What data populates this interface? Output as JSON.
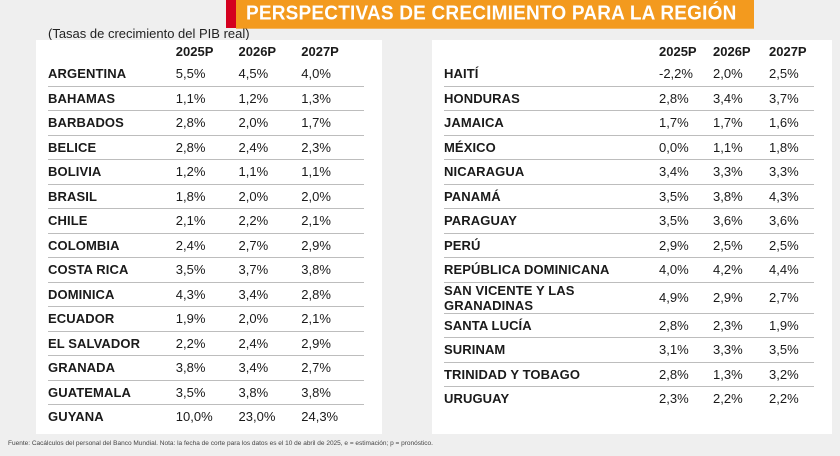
{
  "title": "PERSPECTIVAS DE CRECIMIENTO PARA LA REGIÓN",
  "subtitle": "(Tasas de crecimiento del PIB real)",
  "columns": [
    "2025P",
    "2026P",
    "2027P"
  ],
  "left_rows": [
    {
      "country": "ARGENTINA",
      "v": [
        "5,5%",
        "4,5%",
        "4,0%"
      ]
    },
    {
      "country": "BAHAMAS",
      "v": [
        "1,1%",
        "1,2%",
        "1,3%"
      ]
    },
    {
      "country": "BARBADOS",
      "v": [
        "2,8%",
        "2,0%",
        "1,7%"
      ]
    },
    {
      "country": "BELICE",
      "v": [
        "2,8%",
        "2,4%",
        "2,3%"
      ]
    },
    {
      "country": "BOLIVIA",
      "v": [
        "1,2%",
        "1,1%",
        "1,1%"
      ]
    },
    {
      "country": "BRASIL",
      "v": [
        "1,8%",
        "2,0%",
        "2,0%"
      ]
    },
    {
      "country": "CHILE",
      "v": [
        "2,1%",
        "2,2%",
        "2,1%"
      ]
    },
    {
      "country": "COLOMBIA",
      "v": [
        "2,4%",
        "2,7%",
        "2,9%"
      ]
    },
    {
      "country": "COSTA RICA",
      "v": [
        "3,5%",
        "3,7%",
        "3,8%"
      ]
    },
    {
      "country": "DOMINICA",
      "v": [
        "4,3%",
        "3,4%",
        "2,8%"
      ]
    },
    {
      "country": "ECUADOR",
      "v": [
        "1,9%",
        "2,0%",
        "2,1%"
      ]
    },
    {
      "country": "EL SALVADOR",
      "v": [
        "2,2%",
        "2,4%",
        "2,9%"
      ]
    },
    {
      "country": "GRANADA",
      "v": [
        "3,8%",
        "3,4%",
        "2,7%"
      ]
    },
    {
      "country": "GUATEMALA",
      "v": [
        "3,5%",
        "3,8%",
        "3,8%"
      ]
    },
    {
      "country": "GUYANA",
      "v": [
        "10,0%",
        "23,0%",
        "24,3%"
      ]
    }
  ],
  "right_rows": [
    {
      "country": "HAITÍ",
      "v": [
        "-2,2%",
        "2,0%",
        "2,5%"
      ]
    },
    {
      "country": "HONDURAS",
      "v": [
        "2,8%",
        "3,4%",
        "3,7%"
      ]
    },
    {
      "country": "JAMAICA",
      "v": [
        "1,7%",
        "1,7%",
        "1,6%"
      ]
    },
    {
      "country": "MÉXICO",
      "v": [
        "0,0%",
        "1,1%",
        "1,8%"
      ]
    },
    {
      "country": "NICARAGUA",
      "v": [
        "3,4%",
        "3,3%",
        "3,3%"
      ]
    },
    {
      "country": "PANAMÁ",
      "v": [
        "3,5%",
        "3,8%",
        "4,3%"
      ]
    },
    {
      "country": "PARAGUAY",
      "v": [
        "3,5%",
        "3,6%",
        "3,6%"
      ]
    },
    {
      "country": "PERÚ",
      "v": [
        "2,9%",
        "2,5%",
        "2,5%"
      ]
    },
    {
      "country": "REPÚBLICA DOMINICANA",
      "v": [
        "4,0%",
        "4,2%",
        "4,4%"
      ]
    },
    {
      "country": "SAN VICENTE Y LAS GRANADINAS",
      "v": [
        "4,9%",
        "2,9%",
        "2,7%"
      ]
    },
    {
      "country": "SANTA LUCÍA",
      "v": [
        "2,8%",
        "2,3%",
        "1,9%"
      ]
    },
    {
      "country": "SURINAM",
      "v": [
        "3,1%",
        "3,3%",
        "3,5%"
      ]
    },
    {
      "country": "TRINIDAD Y TOBAGO",
      "v": [
        "2,8%",
        "1,3%",
        "3,2%"
      ]
    },
    {
      "country": "URUGUAY",
      "v": [
        "2,3%",
        "2,2%",
        "2,2%"
      ]
    }
  ],
  "footer": "Fuente: Cacálculos del personal del Banco Mundial. Nota: la fecha de corte para los datos es el 10 de abril de 2025, e = estimación; p = pronóstico.",
  "colors": {
    "title_bg": "#f39a1e",
    "title_accent": "#d4001f",
    "panel_bg": "#ffffff",
    "page_bg": "#efefef"
  }
}
